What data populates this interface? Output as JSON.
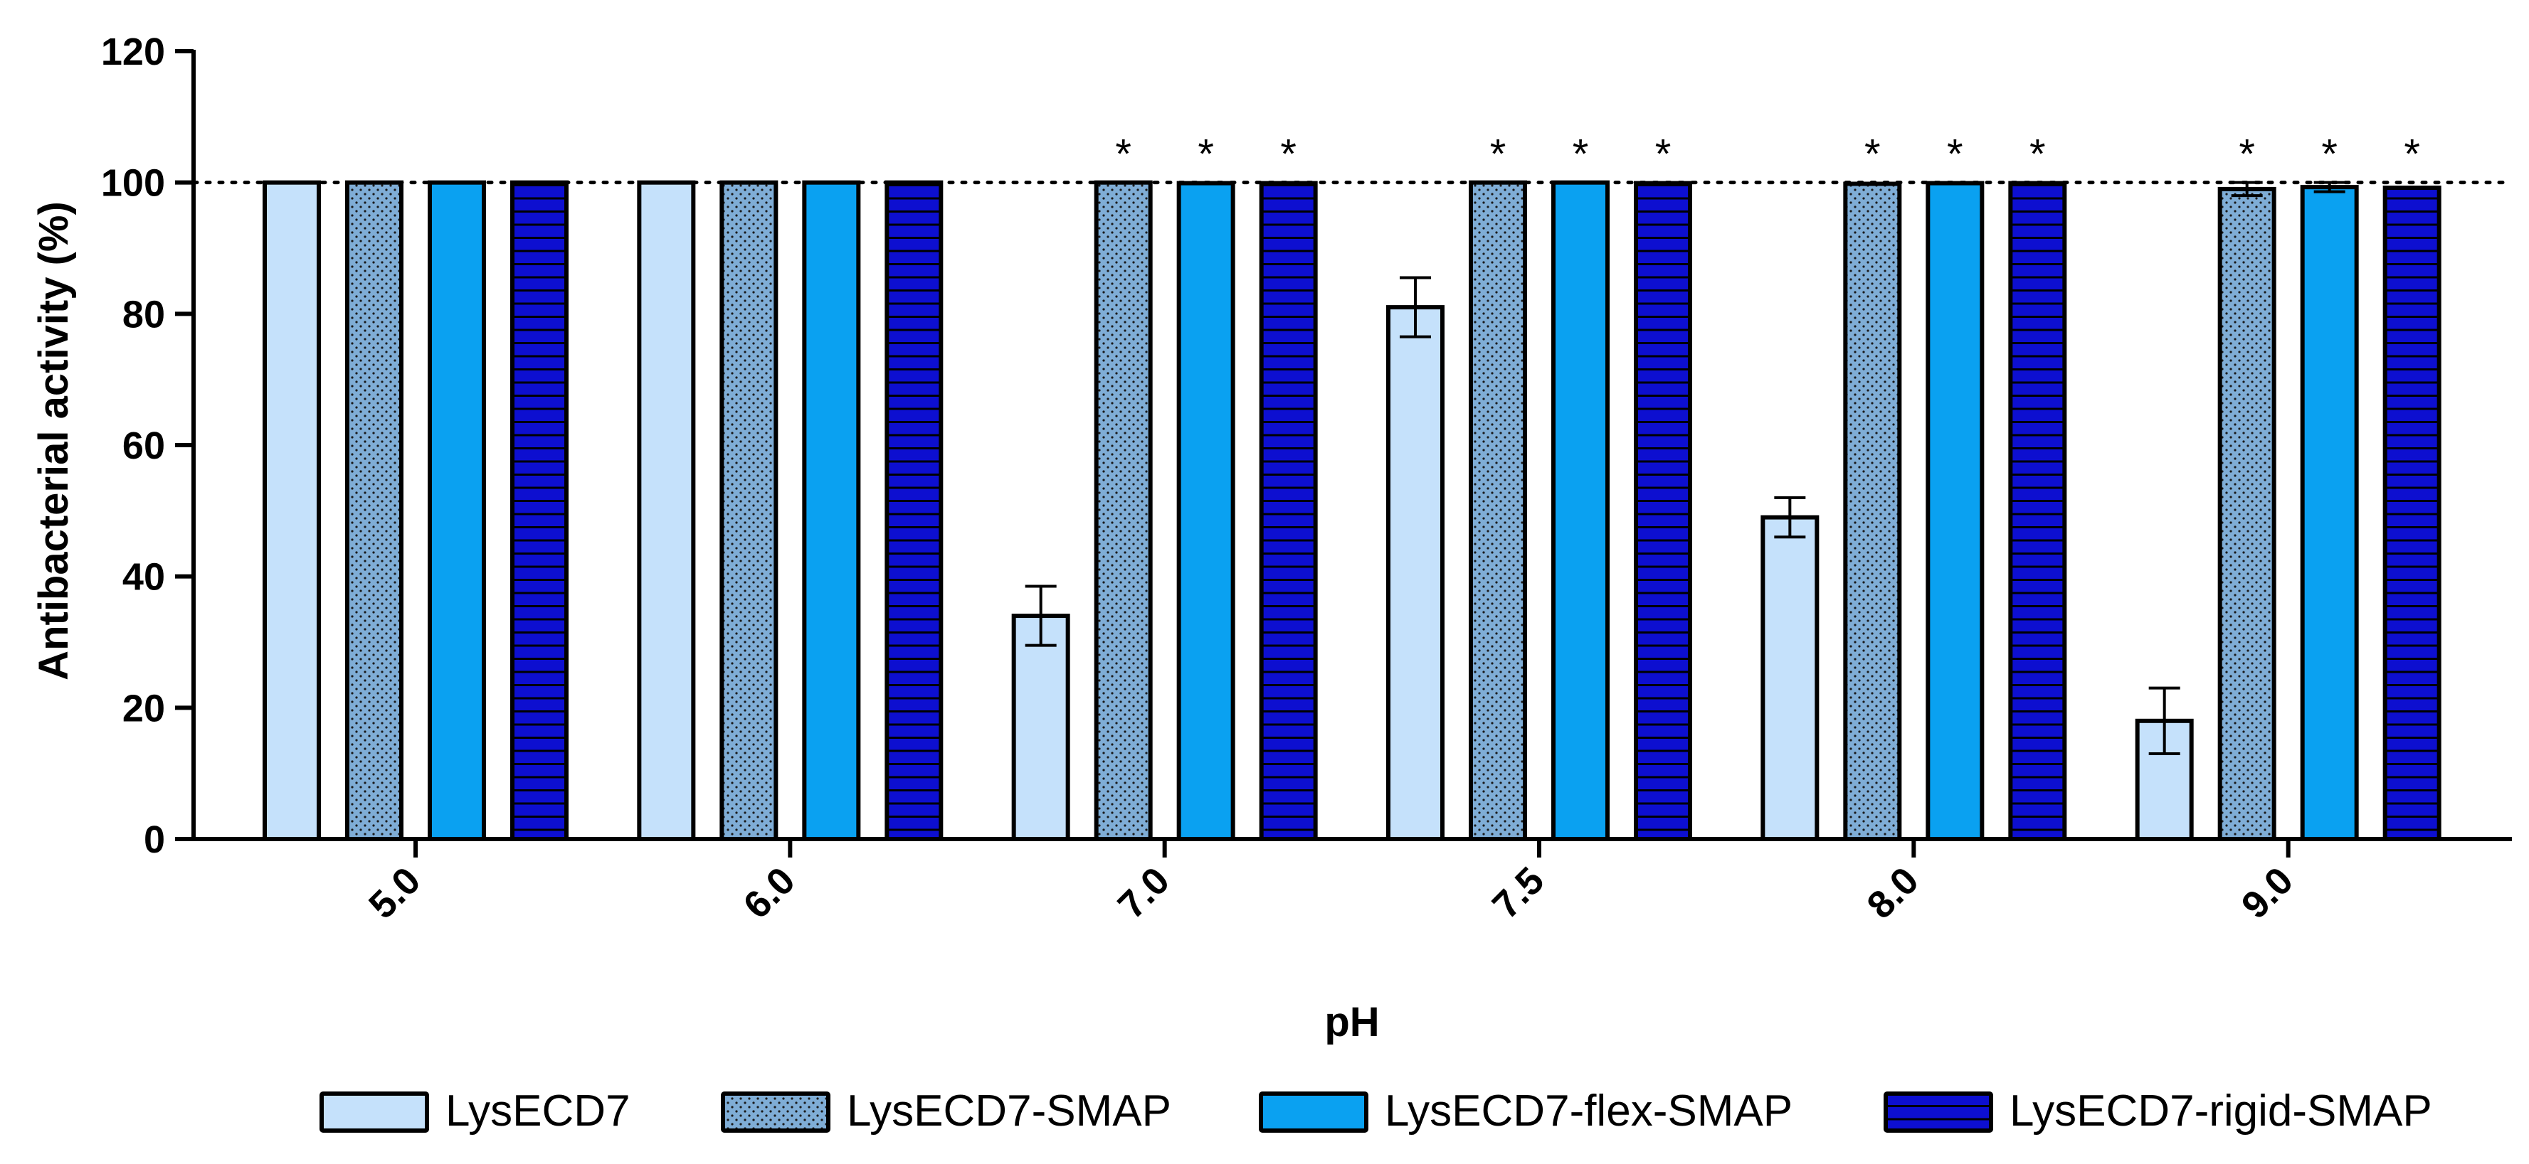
{
  "chart_data": {
    "type": "bar",
    "title": "",
    "xlabel": "pH",
    "ylabel": "Antibacterial activity (%)",
    "ylim": [
      0,
      120
    ],
    "yticks": [
      0,
      20,
      40,
      60,
      80,
      100,
      120
    ],
    "categories": [
      "5.0",
      "6.0",
      "7.0",
      "7.5",
      "8.0",
      "9.0"
    ],
    "reference_line": 100,
    "series": [
      {
        "name": "LysECD7",
        "pattern": "solid",
        "color": "#c5e1fb",
        "values": [
          100,
          100,
          34,
          81,
          49,
          18
        ],
        "errors": [
          0,
          0,
          4.5,
          4.5,
          3,
          5
        ],
        "significant": [
          false,
          false,
          false,
          false,
          false,
          false
        ]
      },
      {
        "name": "LysECD7-SMAP",
        "pattern": "dots",
        "color": "#7fadd6",
        "values": [
          100,
          100,
          100,
          100,
          99.8,
          99
        ],
        "errors": [
          0,
          0,
          0,
          0,
          0,
          1
        ],
        "significant": [
          false,
          false,
          true,
          true,
          true,
          true
        ]
      },
      {
        "name": "LysECD7-flex-SMAP",
        "pattern": "solid",
        "color": "#0aa1f1",
        "values": [
          100,
          100,
          99.9,
          100,
          99.9,
          99.3
        ],
        "errors": [
          0,
          0,
          0,
          0,
          0,
          0.7
        ],
        "significant": [
          false,
          false,
          true,
          true,
          true,
          true
        ]
      },
      {
        "name": "LysECD7-rigid-SMAP",
        "pattern": "hlines",
        "color": "#0d0fd0",
        "values": [
          100,
          100,
          99.9,
          99.9,
          99.9,
          99.2
        ],
        "errors": [
          0,
          0,
          0,
          0,
          0,
          0
        ],
        "significant": [
          false,
          false,
          true,
          true,
          true,
          true
        ]
      }
    ],
    "significance_marker": "*",
    "legend_position": "bottom"
  }
}
